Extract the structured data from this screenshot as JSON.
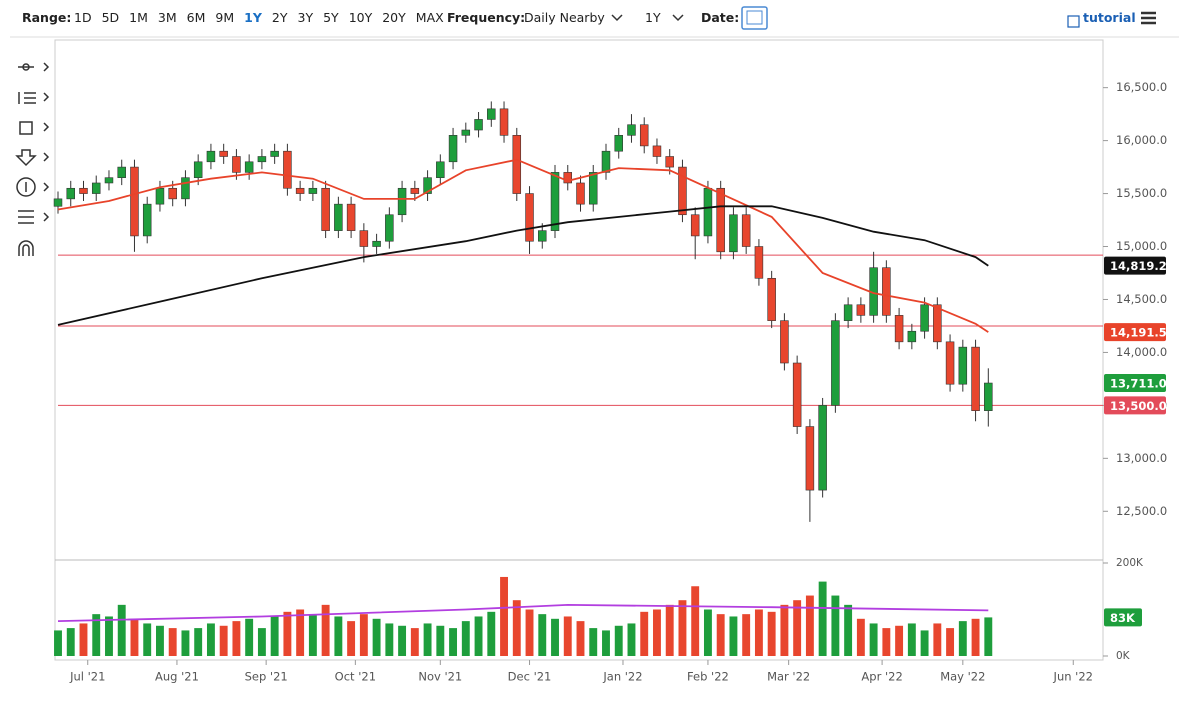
{
  "toolbar": {
    "range_label": "Range:",
    "ranges": [
      "1D",
      "5D",
      "1M",
      "3M",
      "6M",
      "9M",
      "1Y",
      "2Y",
      "3Y",
      "5Y",
      "10Y",
      "20Y",
      "MAX"
    ],
    "selected_range": 6,
    "frequency_label": "Frequency:",
    "frequency": "Daily Nearby",
    "period": "1Y",
    "date_label": "Date:",
    "tutorial": "tutorial"
  },
  "chart_data": [
    {
      "type": "candlestick",
      "up_color": "#1e9e3c",
      "down_color": "#e8462e",
      "x": [
        0,
        3,
        6,
        9,
        12,
        15,
        18,
        21,
        24,
        27,
        30,
        33,
        36,
        39,
        42,
        45,
        48,
        51,
        54,
        57,
        60,
        63,
        66,
        69,
        72,
        75,
        78,
        81,
        84,
        87,
        90,
        93,
        96,
        99,
        102,
        105,
        108,
        111,
        114,
        117,
        120,
        123,
        126,
        129,
        132,
        135,
        138,
        141,
        144,
        147,
        150,
        153,
        156,
        159,
        162,
        165,
        168,
        171,
        174,
        177,
        180,
        183,
        186,
        189,
        192,
        195,
        198,
        201,
        204,
        207,
        210,
        213,
        216,
        219
      ],
      "open": [
        15380,
        15450,
        15550,
        15500,
        15600,
        15650,
        15750,
        15100,
        15400,
        15550,
        15450,
        15650,
        15800,
        15900,
        15850,
        15700,
        15800,
        15850,
        15900,
        15550,
        15500,
        15550,
        15150,
        15400,
        15150,
        15000,
        15050,
        15300,
        15550,
        15500,
        15650,
        15800,
        16050,
        16100,
        16200,
        16300,
        16050,
        15500,
        15050,
        15150,
        15700,
        15600,
        15400,
        15700,
        15900,
        16050,
        16150,
        15950,
        15850,
        15750,
        15300,
        15100,
        15550,
        14950,
        15300,
        15000,
        14700,
        14300,
        13900,
        13300,
        12700,
        13500,
        14300,
        14450,
        14350,
        14800,
        14350,
        14100,
        14200,
        14450,
        14100,
        13700,
        14050,
        13450
      ],
      "high": [
        15520,
        15620,
        15620,
        15670,
        15720,
        15820,
        15820,
        15470,
        15620,
        15620,
        15720,
        15870,
        15970,
        15970,
        15920,
        15870,
        15920,
        15970,
        15970,
        15620,
        15620,
        15620,
        15470,
        15470,
        15220,
        15120,
        15370,
        15620,
        15620,
        15720,
        15870,
        16120,
        16170,
        16270,
        16370,
        16370,
        16120,
        15570,
        15220,
        15770,
        15770,
        15670,
        15770,
        15970,
        16120,
        16250,
        16220,
        16020,
        15920,
        15820,
        15370,
        15620,
        15620,
        15370,
        15370,
        15070,
        14770,
        14370,
        13970,
        13370,
        13570,
        14370,
        14520,
        14520,
        14950,
        14870,
        14420,
        14270,
        14520,
        14520,
        14170,
        14120,
        14120,
        13850
      ],
      "low": [
        15310,
        15380,
        15430,
        15430,
        15530,
        15580,
        14950,
        15030,
        15330,
        15380,
        15380,
        15580,
        15730,
        15780,
        15630,
        15630,
        15730,
        15780,
        15480,
        15430,
        15430,
        15080,
        15080,
        15080,
        14850,
        14930,
        14980,
        15230,
        15430,
        15430,
        15580,
        15730,
        15980,
        16030,
        16130,
        15980,
        15430,
        14930,
        14980,
        15080,
        15530,
        15330,
        15330,
        15630,
        15830,
        15980,
        15880,
        15780,
        15680,
        15230,
        14880,
        15030,
        14880,
        14880,
        14930,
        14630,
        14230,
        13830,
        13230,
        12400,
        12630,
        13430,
        14230,
        14280,
        14280,
        14280,
        14030,
        14030,
        14130,
        14030,
        13630,
        13630,
        13350,
        13300
      ],
      "close": [
        15450,
        15550,
        15500,
        15600,
        15650,
        15750,
        15100,
        15400,
        15550,
        15450,
        15650,
        15800,
        15900,
        15850,
        15700,
        15800,
        15850,
        15900,
        15550,
        15500,
        15550,
        15150,
        15400,
        15150,
        15000,
        15050,
        15300,
        15550,
        15500,
        15650,
        15800,
        16050,
        16100,
        16200,
        16300,
        16050,
        15500,
        15050,
        15150,
        15700,
        15600,
        15400,
        15700,
        15900,
        16050,
        16150,
        15950,
        15850,
        15750,
        15300,
        15100,
        15550,
        14950,
        15300,
        15000,
        14700,
        14300,
        13900,
        13300,
        12700,
        13500,
        14300,
        14450,
        14350,
        14800,
        14350,
        14100,
        14200,
        14450,
        14100,
        13700,
        14050,
        13450,
        13711
      ],
      "last_label": "13,711.0",
      "lines": [
        {
          "color": "#e8432a",
          "x": [
            0,
            12,
            24,
            36,
            48,
            60,
            72,
            84,
            96,
            108,
            120,
            132,
            144,
            156,
            168,
            180,
            192,
            204,
            216,
            219
          ],
          "values": [
            15350,
            15430,
            15560,
            15640,
            15700,
            15640,
            15450,
            15450,
            15720,
            15820,
            15620,
            15740,
            15720,
            15500,
            15280,
            14750,
            14560,
            14470,
            14270,
            14191.5
          ],
          "last_label": "14,191.5"
        },
        {
          "color": "#111111",
          "x": [
            0,
            24,
            48,
            72,
            96,
            108,
            120,
            144,
            156,
            168,
            180,
            192,
            204,
            216,
            219
          ],
          "values": [
            14260,
            14480,
            14700,
            14900,
            15050,
            15150,
            15230,
            15330,
            15380,
            15380,
            15270,
            15140,
            15060,
            14900,
            14819.2
          ],
          "last_label": "14,819.2"
        }
      ],
      "levels": [
        {
          "value": 14918.2,
          "color": "#e34b5a"
        },
        {
          "value": 14250,
          "color": "#e34b5a"
        },
        {
          "value": 13500,
          "color": "#e34b5a",
          "label": "13,500.0"
        }
      ],
      "xlim": [
        0,
        246
      ],
      "ylim": [
        12040,
        16950
      ],
      "yticks": [
        {
          "value": 12500,
          "label": "12,500.0"
        },
        {
          "value": 13000,
          "label": "13,000.0"
        },
        {
          "value": 13500,
          "label": "13,500.0"
        },
        {
          "value": 14000,
          "label": "14,000.0"
        },
        {
          "value": 14500,
          "label": "14,500.0"
        },
        {
          "value": 15000,
          "label": "15,000.0"
        },
        {
          "value": 15500,
          "label": "15,500.0"
        },
        {
          "value": 16000,
          "label": "16,000.0"
        },
        {
          "value": 16500,
          "label": "16,500.0"
        }
      ]
    },
    {
      "type": "bar",
      "up_color": "#1e9e3c",
      "down_color": "#e8462e",
      "values": [
        55,
        60,
        70,
        90,
        85,
        110,
        80,
        70,
        65,
        60,
        55,
        60,
        70,
        65,
        75,
        80,
        60,
        85,
        95,
        100,
        90,
        110,
        85,
        75,
        90,
        80,
        70,
        65,
        60,
        70,
        65,
        60,
        75,
        85,
        95,
        170,
        120,
        100,
        90,
        80,
        85,
        75,
        60,
        55,
        65,
        70,
        95,
        100,
        110,
        120,
        150,
        100,
        90,
        85,
        90,
        100,
        95,
        110,
        120,
        130,
        160,
        130,
        110,
        80,
        70,
        60,
        65,
        70,
        55,
        70,
        60,
        75,
        80,
        83
      ],
      "last_label": "83K",
      "average": {
        "color": "#b23ee0",
        "x": [
          0,
          48,
          96,
          120,
          168,
          219
        ],
        "values": [
          75,
          85,
          100,
          110,
          105,
          98
        ]
      },
      "xlim": [
        0,
        246
      ],
      "ylim": [
        0,
        200
      ],
      "yticks": [
        {
          "value": 0,
          "label": "0K"
        },
        {
          "value": 200,
          "label": "200K"
        }
      ],
      "xticks": [
        {
          "value": 7,
          "label": "Jul '21"
        },
        {
          "value": 28,
          "label": "Aug '21"
        },
        {
          "value": 49,
          "label": "Sep '21"
        },
        {
          "value": 70,
          "label": "Oct '21"
        },
        {
          "value": 90,
          "label": "Nov '21"
        },
        {
          "value": 111,
          "label": "Dec '21"
        },
        {
          "value": 133,
          "label": "Jan '22"
        },
        {
          "value": 153,
          "label": "Feb '22"
        },
        {
          "value": 172,
          "label": "Mar '22"
        },
        {
          "value": 194,
          "label": "Apr '22"
        },
        {
          "value": 213,
          "label": "May '22"
        },
        {
          "value": 239,
          "label": "Jun '22"
        }
      ]
    }
  ]
}
